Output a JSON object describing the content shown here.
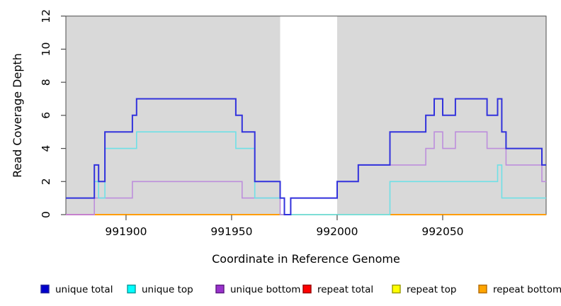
{
  "chart_data": {
    "type": "line",
    "subtype": "step-after",
    "title": "",
    "xlabel": "Coordinate in Reference Genome",
    "ylabel": "Read Coverage Depth",
    "xlim": [
      991871.5,
      992099
    ],
    "ylim": [
      0,
      12
    ],
    "x_ticks": [
      991900,
      991950,
      992000,
      992050
    ],
    "y_ticks": [
      0,
      2,
      4,
      6,
      8,
      10,
      12
    ],
    "grid": false,
    "plot_bg": "#d9d9d9",
    "highlight_band": {
      "from": 991973,
      "to": 992000,
      "color": "#ffffff"
    },
    "series": [
      {
        "name": "unique total",
        "line_color": "#3232dc",
        "width": 2.0,
        "points": [
          [
            991871.5,
            1
          ],
          [
            991885,
            3
          ],
          [
            991887,
            2
          ],
          [
            991890,
            5
          ],
          [
            991903,
            6
          ],
          [
            991905,
            7
          ],
          [
            991952,
            6
          ],
          [
            991955,
            5
          ],
          [
            991961,
            2
          ],
          [
            991973,
            1
          ],
          [
            991975,
            0
          ],
          [
            991978,
            1
          ],
          [
            992000,
            2
          ],
          [
            992010,
            3
          ],
          [
            992025,
            5
          ],
          [
            992042,
            6
          ],
          [
            992046,
            7
          ],
          [
            992050,
            6
          ],
          [
            992056,
            7
          ],
          [
            992071,
            6
          ],
          [
            992076,
            7
          ],
          [
            992078,
            5
          ],
          [
            992080,
            4
          ],
          [
            992097,
            3
          ]
        ]
      },
      {
        "name": "unique top",
        "line_color": "#6fe0e6",
        "width": 1.6,
        "points": [
          [
            991871.5,
            1
          ],
          [
            991885,
            2
          ],
          [
            991887,
            1
          ],
          [
            991890,
            4
          ],
          [
            991905,
            5
          ],
          [
            991952,
            4
          ],
          [
            991961,
            1
          ],
          [
            991975,
            0
          ],
          [
            992025,
            2
          ],
          [
            992076,
            3
          ],
          [
            992078,
            1
          ]
        ]
      },
      {
        "name": "unique bottom",
        "line_color": "#bd8edc",
        "width": 1.6,
        "points": [
          [
            991871.5,
            0
          ],
          [
            991885,
            1
          ],
          [
            991903,
            2
          ],
          [
            991955,
            1
          ],
          [
            991973,
            0
          ],
          [
            991978,
            1
          ],
          [
            992000,
            2
          ],
          [
            992010,
            3
          ],
          [
            992042,
            4
          ],
          [
            992046,
            5
          ],
          [
            992050,
            4
          ],
          [
            992056,
            5
          ],
          [
            992071,
            4
          ],
          [
            992080,
            3
          ],
          [
            992097,
            2
          ]
        ]
      },
      {
        "name": "repeat total",
        "line_color": "#ff0000",
        "width": 1.6,
        "points": [
          [
            991871.5,
            0
          ]
        ]
      },
      {
        "name": "repeat top",
        "line_color": "#ffff00",
        "width": 1.6,
        "points": [
          [
            991871.5,
            0
          ]
        ]
      },
      {
        "name": "repeat bottom",
        "line_color": "#ff9d00",
        "width": 2.0,
        "points": [
          [
            991871.5,
            0
          ]
        ]
      }
    ],
    "baseline_overrides": [
      {
        "from": 991871.5,
        "to": 991885,
        "color": "#e0559d"
      },
      {
        "from": 991972.8,
        "to": 992025,
        "color": "#a9d7a9"
      }
    ],
    "legend_position": "bottom",
    "legend": [
      {
        "label": "unique total",
        "fill": "#0000cd",
        "border": "#26269a"
      },
      {
        "label": "unique top",
        "fill": "#00ffff",
        "border": "#0d9a9a"
      },
      {
        "label": "unique bottom",
        "fill": "#9932cc",
        "border": "#5c1a80"
      },
      {
        "label": "repeat total",
        "fill": "#ff0000",
        "border": "#990000"
      },
      {
        "label": "repeat top",
        "fill": "#ffff00",
        "border": "#9a9a00"
      },
      {
        "label": "repeat bottom",
        "fill": "#ffa500",
        "border": "#b36b00"
      }
    ]
  }
}
